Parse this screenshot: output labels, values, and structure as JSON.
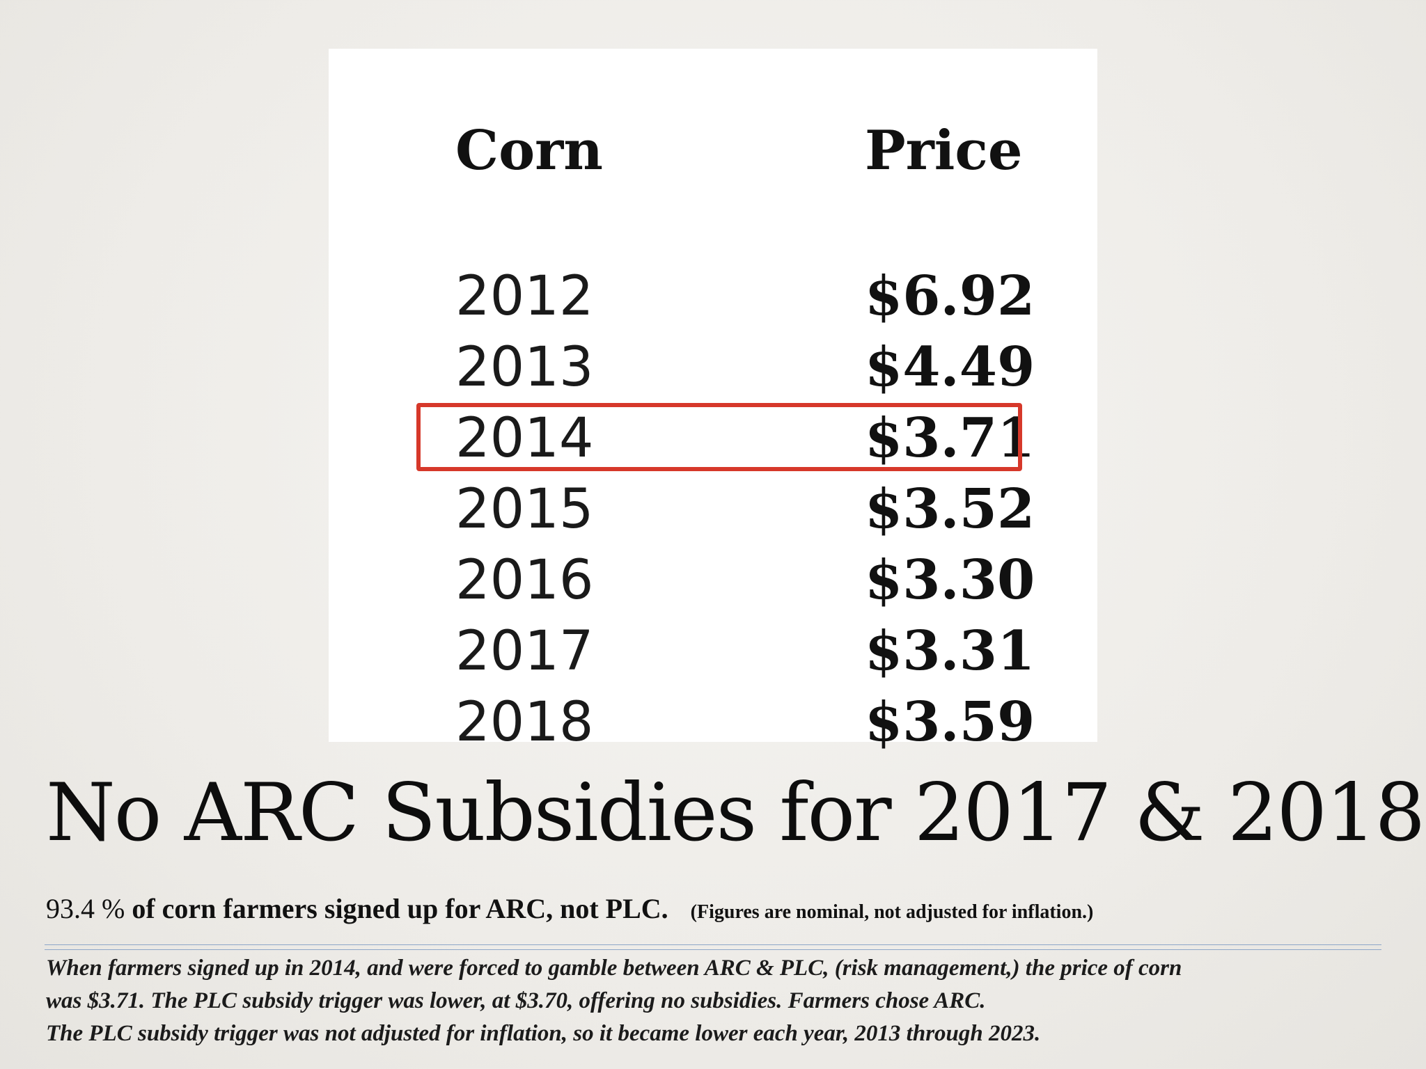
{
  "table": {
    "headers": {
      "corn": "Corn",
      "price": "Price"
    },
    "rows": [
      {
        "year": "2012",
        "price": "$6.92",
        "highlighted": false
      },
      {
        "year": "2013",
        "price": "$4.49",
        "highlighted": false
      },
      {
        "year": "2014",
        "price": "$3.71",
        "highlighted": true
      },
      {
        "year": "2015",
        "price": "$3.52",
        "highlighted": false
      },
      {
        "year": "2016",
        "price": "$3.30",
        "highlighted": false
      },
      {
        "year": "2017",
        "price": "$3.31",
        "highlighted": false
      },
      {
        "year": "2018",
        "price": "$3.59",
        "highlighted": false
      }
    ],
    "highlight_color": "#d6382a"
  },
  "headline": "No ARC Subsidies for 2017 & 2018?",
  "subline": {
    "pct": "93.4 %",
    "text": "of corn farmers signed up for ARC, not PLC.",
    "note": "(Figures are nominal, not adjusted for inflation.)"
  },
  "explanation": {
    "line1": "When farmers signed up in 2014, and were forced to gamble between ARC & PLC, (risk management,) the price of corn",
    "line2": "was $3.71.  The PLC subsidy trigger was lower, at $3.70, offering no subsidies.  Farmers chose ARC.",
    "line3": "The PLC subsidy trigger was not adjusted for inflation, so it became lower each year, 2013 through 2023."
  }
}
